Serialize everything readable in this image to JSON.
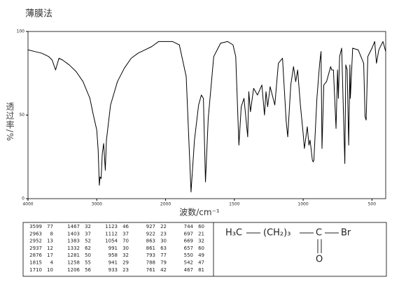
{
  "chart_data": {
    "type": "line",
    "title": "薄膜法",
    "ylabel": "透过率/%",
    "xlabel": "波数/cm⁻¹",
    "xlim": [
      4000,
      400
    ],
    "ylim": [
      0,
      100
    ],
    "xticks": [
      4000,
      3000,
      2000,
      1500,
      1000,
      500
    ],
    "yticks": [
      0,
      50,
      100
    ],
    "color": "#000000",
    "x": [
      4000,
      3900,
      3800,
      3700,
      3650,
      3599,
      3550,
      3500,
      3400,
      3300,
      3200,
      3100,
      3050,
      3000,
      2980,
      2963,
      2952,
      2937,
      2920,
      2900,
      2876,
      2860,
      2800,
      2700,
      2600,
      2500,
      2400,
      2300,
      2200,
      2100,
      2000,
      1950,
      1900,
      1850,
      1815,
      1790,
      1760,
      1740,
      1725,
      1710,
      1690,
      1650,
      1600,
      1550,
      1510,
      1490,
      1467,
      1450,
      1430,
      1403,
      1395,
      1383,
      1360,
      1332,
      1300,
      1281,
      1270,
      1258,
      1240,
      1206,
      1180,
      1150,
      1123,
      1112,
      1090,
      1070,
      1054,
      1040,
      1020,
      1000,
      991,
      970,
      958,
      950,
      941,
      933,
      927,
      922,
      900,
      880,
      870,
      863,
      850,
      830,
      800,
      793,
      780,
      761,
      750,
      744,
      735,
      720,
      697,
      690,
      680,
      669,
      660,
      657,
      640,
      600,
      560,
      550,
      542,
      530,
      500,
      480,
      467,
      450,
      420,
      400
    ],
    "values": [
      89,
      88,
      87,
      85,
      83,
      77,
      84,
      83,
      80,
      76,
      70,
      60,
      50,
      41,
      29,
      8,
      13,
      12,
      27,
      33,
      17,
      35,
      56,
      70,
      78,
      84,
      87,
      89,
      91,
      94,
      94,
      94,
      92,
      73,
      4,
      35,
      56,
      62,
      60,
      10,
      48,
      85,
      93,
      94,
      92,
      85,
      32,
      55,
      60,
      37,
      64,
      52,
      66,
      62,
      68,
      50,
      64,
      55,
      67,
      56,
      81,
      84,
      46,
      37,
      68,
      79,
      70,
      77,
      56,
      39,
      30,
      43,
      32,
      35,
      29,
      23,
      22,
      23,
      60,
      81,
      88,
      30,
      68,
      70,
      79,
      77,
      77,
      42,
      77,
      60,
      85,
      90,
      21,
      80,
      77,
      32,
      80,
      60,
      90,
      89,
      81,
      49,
      47,
      85,
      90,
      94,
      81,
      89,
      94,
      88
    ]
  },
  "peak_table": {
    "columns": [
      [
        [
          3599,
          77
        ],
        [
          2963,
          8
        ],
        [
          2952,
          13
        ],
        [
          2937,
          12
        ],
        [
          2876,
          17
        ],
        [
          1815,
          4
        ],
        [
          1710,
          10
        ]
      ],
      [
        [
          1467,
          32
        ],
        [
          1403,
          37
        ],
        [
          1383,
          52
        ],
        [
          1332,
          62
        ],
        [
          1281,
          50
        ],
        [
          1258,
          55
        ],
        [
          1206,
          56
        ]
      ],
      [
        [
          1123,
          46
        ],
        [
          1112,
          37
        ],
        [
          1054,
          70
        ],
        [
          991,
          30
        ],
        [
          958,
          32
        ],
        [
          941,
          29
        ],
        [
          933,
          23
        ]
      ],
      [
        [
          927,
          22
        ],
        [
          922,
          23
        ],
        [
          863,
          30
        ],
        [
          861,
          63
        ],
        [
          793,
          77
        ],
        [
          788,
          79
        ],
        [
          761,
          42
        ]
      ],
      [
        [
          744,
          60
        ],
        [
          697,
          21
        ],
        [
          669,
          32
        ],
        [
          657,
          60
        ],
        [
          550,
          49
        ],
        [
          542,
          47
        ],
        [
          467,
          81
        ]
      ]
    ]
  },
  "structure": {
    "left": "H₃C",
    "chain": "(CH₂)₃",
    "carbon": "C",
    "halogen": "Br",
    "oxygen": "O"
  }
}
